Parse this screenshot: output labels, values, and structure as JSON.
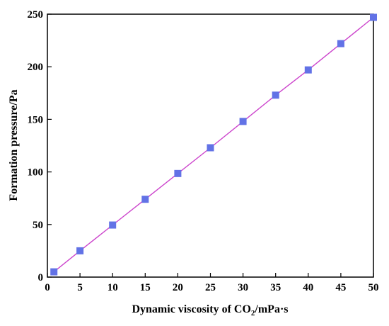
{
  "chart_data": {
    "type": "line",
    "title": "",
    "xlabel": {
      "pre": "Dynamic viscosity of CO",
      "sub": "2",
      "post": "/mPa·s"
    },
    "ylabel": "Formation pressure/Pa",
    "xlim": [
      0,
      50
    ],
    "ylim": [
      0,
      250
    ],
    "x_ticks": [
      0,
      5,
      10,
      15,
      20,
      25,
      30,
      35,
      40,
      45,
      50
    ],
    "y_ticks": [
      0,
      50,
      100,
      150,
      200,
      250
    ],
    "grid": false,
    "legend": "none",
    "series": [
      {
        "x": [
          1,
          5,
          10,
          15,
          20,
          25,
          30,
          35,
          40,
          45,
          50
        ],
        "y": [
          5,
          25,
          49.5,
          74,
          98.5,
          123,
          148,
          173,
          197,
          222,
          247
        ],
        "marker": "square",
        "marker_color": "#6272e6",
        "line_color": "#cc44cc"
      }
    ]
  }
}
